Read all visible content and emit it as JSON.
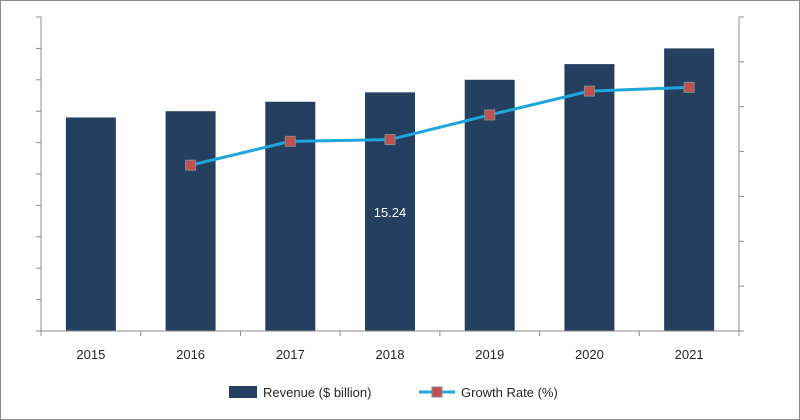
{
  "chart_data": {
    "type": "bar",
    "categories": [
      "2015",
      "2016",
      "2017",
      "2018",
      "2019",
      "2020",
      "2021"
    ],
    "series": [
      {
        "name": "Revenue ($ billion)",
        "type": "bar",
        "axis": "left",
        "color": "#243f60",
        "values": [
          6.8,
          7.0,
          7.3,
          7.6,
          8.0,
          8.5,
          9.0
        ]
      },
      {
        "name": "Growth Rate (%)",
        "type": "line",
        "axis": "right",
        "color": "#1fa6dc",
        "marker_color": "#c0504d",
        "values": [
          null,
          13.2,
          15.1,
          15.24,
          17.2,
          19.1,
          19.4
        ]
      }
    ],
    "left_axis": {
      "ylim": [
        0,
        10
      ],
      "tick_count": 10,
      "tick_labels_shown": false
    },
    "right_axis": {
      "ylim": [
        0,
        25
      ],
      "tick_count": 7,
      "tick_labels_shown": false
    },
    "data_labels": [
      {
        "series": "Growth Rate (%)",
        "category": "2018",
        "text": "15.24"
      }
    ],
    "legend": {
      "position": "bottom"
    },
    "grid": false,
    "title": "",
    "xlabel": "",
    "ylabel": ""
  }
}
